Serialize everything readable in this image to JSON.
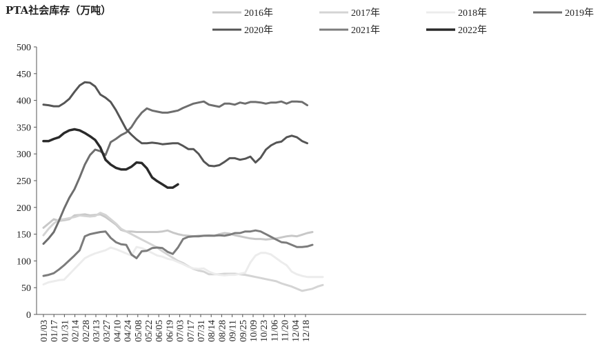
{
  "chart_data": {
    "type": "line",
    "title": "PTA社会库存（万吨）",
    "xlabel": "",
    "ylabel": "",
    "ylim": [
      0,
      500
    ],
    "y_ticks": [
      0,
      50,
      100,
      150,
      200,
      250,
      300,
      350,
      400,
      450,
      500
    ],
    "x_tick_labels": [
      "01/03",
      "01/17",
      "01/31",
      "02/14",
      "02/28",
      "03/13",
      "03/27",
      "04/10",
      "04/24",
      "05/08",
      "05/22",
      "06/05",
      "06/19",
      "07/03",
      "07/17",
      "07/31",
      "08/14",
      "08/28",
      "09/11",
      "09/25",
      "10/09",
      "10/23",
      "11/06",
      "11/20",
      "12/04",
      "12/18"
    ],
    "grid": false,
    "legend_position": "top",
    "series": [
      {
        "name": "2016年",
        "color": "#c8c8c8",
        "width": 3,
        "values": [
          162,
          170,
          178,
          175,
          176,
          178,
          185,
          186,
          187,
          185,
          186,
          187,
          182,
          175,
          168,
          158,
          155,
          155,
          154,
          154,
          154,
          154,
          154,
          155,
          157,
          153,
          150,
          148,
          147,
          146,
          147,
          147,
          148,
          147,
          150,
          152,
          151,
          148,
          146,
          144,
          142,
          141,
          141,
          140,
          141,
          142,
          144,
          146,
          147,
          146,
          149,
          152,
          154
        ]
      },
      {
        "name": "2017年",
        "color": "#d4d4d4",
        "width": 3,
        "values": [
          148,
          160,
          170,
          177,
          178,
          180,
          182,
          185,
          184,
          183,
          184,
          190,
          186,
          178,
          170,
          160,
          155,
          150,
          145,
          140,
          135,
          130,
          125,
          118,
          112,
          106,
          100,
          96,
          90,
          85,
          82,
          80,
          75,
          75,
          75,
          76,
          76,
          76,
          75,
          74,
          72,
          70,
          68,
          66,
          64,
          62,
          58,
          55,
          52,
          48,
          44,
          46,
          48,
          52,
          55
        ]
      },
      {
        "name": "2018年",
        "color": "#ececec",
        "width": 3,
        "values": [
          56,
          60,
          62,
          64,
          65,
          75,
          85,
          95,
          105,
          110,
          114,
          117,
          120,
          125,
          122,
          118,
          114,
          110,
          126,
          124,
          120,
          115,
          110,
          108,
          104,
          102,
          98,
          94,
          89,
          86,
          85,
          86,
          80,
          76,
          74,
          73,
          74,
          74,
          76,
          78,
          97,
          110,
          115,
          115,
          112,
          105,
          98,
          92,
          80,
          75,
          72,
          70,
          70,
          70,
          70
        ]
      },
      {
        "name": "2019年",
        "color": "#6e6e6e",
        "width": 3,
        "values": [
          132,
          142,
          154,
          175,
          198,
          218,
          234,
          256,
          280,
          298,
          308,
          305,
          298,
          322,
          328,
          335,
          340,
          350,
          365,
          377,
          385,
          381,
          379,
          377,
          377,
          379,
          381,
          386,
          390,
          394,
          396,
          398,
          392,
          390,
          388,
          394,
          394,
          392,
          396,
          394,
          397,
          397,
          396,
          394,
          396,
          396,
          398,
          394,
          398,
          398,
          397,
          391
        ]
      },
      {
        "name": "2020年",
        "color": "#555555",
        "width": 3,
        "values": [
          392,
          391,
          389,
          389,
          395,
          403,
          416,
          428,
          434,
          433,
          426,
          411,
          405,
          397,
          382,
          364,
          346,
          336,
          327,
          320,
          320,
          321,
          320,
          318,
          319,
          320,
          320,
          315,
          309,
          309,
          300,
          286,
          278,
          277,
          279,
          285,
          292,
          292,
          289,
          291,
          295,
          284,
          293,
          308,
          316,
          321,
          323,
          331,
          334,
          331,
          324,
          320
        ]
      },
      {
        "name": "2021年",
        "color": "#7c7c7c",
        "width": 3,
        "values": [
          72,
          74,
          77,
          84,
          92,
          101,
          110,
          120,
          146,
          150,
          152,
          154,
          155,
          143,
          135,
          131,
          130,
          112,
          105,
          118,
          119,
          124,
          125,
          124,
          117,
          113,
          125,
          141,
          145,
          146,
          146,
          147,
          147,
          147,
          148,
          147,
          149,
          152,
          152,
          155,
          155,
          157,
          155,
          150,
          145,
          140,
          135,
          134,
          130,
          126,
          126,
          127,
          130
        ]
      },
      {
        "name": "2022年",
        "color": "#2a2a2a",
        "width": 3.5,
        "values": [
          324,
          324,
          328,
          331,
          339,
          344,
          346,
          344,
          339,
          333,
          326,
          312,
          289,
          280,
          274,
          271,
          271,
          276,
          284,
          283,
          273,
          256,
          249,
          243,
          237,
          237,
          243
        ]
      }
    ]
  }
}
